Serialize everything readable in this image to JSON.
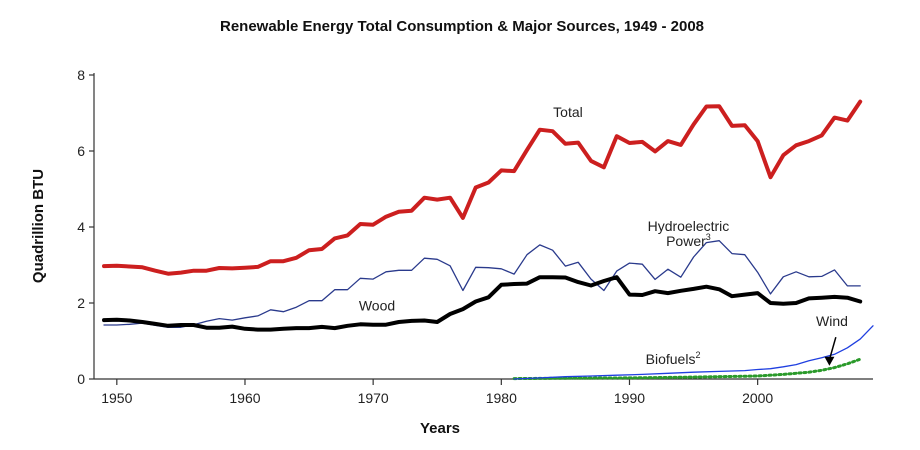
{
  "chart_data": {
    "type": "line",
    "title": "Renewable Energy Total Consumption & Major Sources, 1949 - 2008",
    "xlabel": "Years",
    "ylabel": "Quadrillion BTU",
    "xlim": [
      1949,
      2008
    ],
    "ylim": [
      0,
      8
    ],
    "xticks": [
      1950,
      1960,
      1970,
      1980,
      1990,
      2000
    ],
    "yticks": [
      0,
      2,
      4,
      6,
      8
    ],
    "grid": false,
    "series": [
      {
        "name": "Total",
        "color": "#cc1f1f",
        "style": "solid-thick",
        "points": [
          [
            1949,
            2.97
          ],
          [
            1950,
            2.98
          ],
          [
            1951,
            2.96
          ],
          [
            1952,
            2.94
          ],
          [
            1953,
            2.85
          ],
          [
            1954,
            2.77
          ],
          [
            1955,
            2.8
          ],
          [
            1956,
            2.85
          ],
          [
            1957,
            2.85
          ],
          [
            1958,
            2.92
          ],
          [
            1959,
            2.91
          ],
          [
            1960,
            2.93
          ],
          [
            1961,
            2.95
          ],
          [
            1962,
            3.1
          ],
          [
            1963,
            3.1
          ],
          [
            1964,
            3.19
          ],
          [
            1965,
            3.39
          ],
          [
            1966,
            3.42
          ],
          [
            1967,
            3.7
          ],
          [
            1968,
            3.78
          ],
          [
            1969,
            4.08
          ],
          [
            1970,
            4.06
          ],
          [
            1971,
            4.27
          ],
          [
            1972,
            4.4
          ],
          [
            1973,
            4.43
          ],
          [
            1974,
            4.77
          ],
          [
            1975,
            4.72
          ],
          [
            1976,
            4.77
          ],
          [
            1977,
            4.24
          ],
          [
            1978,
            5.04
          ],
          [
            1979,
            5.17
          ],
          [
            1980,
            5.49
          ],
          [
            1981,
            5.47
          ],
          [
            1982,
            6.03
          ],
          [
            1983,
            6.56
          ],
          [
            1984,
            6.52
          ],
          [
            1985,
            6.19
          ],
          [
            1986,
            6.22
          ],
          [
            1987,
            5.74
          ],
          [
            1988,
            5.57
          ],
          [
            1989,
            6.39
          ],
          [
            1990,
            6.21
          ],
          [
            1991,
            6.24
          ],
          [
            1992,
            5.99
          ],
          [
            1993,
            6.26
          ],
          [
            1994,
            6.16
          ],
          [
            1995,
            6.7
          ],
          [
            1996,
            7.17
          ],
          [
            1997,
            7.18
          ],
          [
            1998,
            6.66
          ],
          [
            1999,
            6.68
          ],
          [
            2000,
            6.26
          ],
          [
            2001,
            5.31
          ],
          [
            2002,
            5.89
          ],
          [
            2003,
            6.15
          ],
          [
            2004,
            6.26
          ],
          [
            2005,
            6.41
          ],
          [
            2006,
            6.88
          ],
          [
            2007,
            6.8
          ],
          [
            2008,
            7.3
          ]
        ]
      },
      {
        "name": "Hydroelectric Power",
        "name_superscript": "3",
        "label_line1": "Hydroelectric",
        "label_line2": "Power",
        "color": "#2a3a8c",
        "style": "solid-thin",
        "points": [
          [
            1949,
            1.42
          ],
          [
            1950,
            1.42
          ],
          [
            1951,
            1.44
          ],
          [
            1952,
            1.47
          ],
          [
            1953,
            1.41
          ],
          [
            1954,
            1.36
          ],
          [
            1955,
            1.36
          ],
          [
            1956,
            1.43
          ],
          [
            1957,
            1.52
          ],
          [
            1958,
            1.59
          ],
          [
            1959,
            1.55
          ],
          [
            1960,
            1.61
          ],
          [
            1961,
            1.66
          ],
          [
            1962,
            1.82
          ],
          [
            1963,
            1.77
          ],
          [
            1964,
            1.89
          ],
          [
            1965,
            2.06
          ],
          [
            1966,
            2.06
          ],
          [
            1967,
            2.35
          ],
          [
            1968,
            2.35
          ],
          [
            1969,
            2.65
          ],
          [
            1970,
            2.63
          ],
          [
            1971,
            2.82
          ],
          [
            1972,
            2.86
          ],
          [
            1973,
            2.86
          ],
          [
            1974,
            3.18
          ],
          [
            1975,
            3.15
          ],
          [
            1976,
            2.98
          ],
          [
            1977,
            2.33
          ],
          [
            1978,
            2.94
          ],
          [
            1979,
            2.93
          ],
          [
            1980,
            2.9
          ],
          [
            1981,
            2.76
          ],
          [
            1982,
            3.27
          ],
          [
            1983,
            3.53
          ],
          [
            1984,
            3.39
          ],
          [
            1985,
            2.97
          ],
          [
            1986,
            3.07
          ],
          [
            1987,
            2.63
          ],
          [
            1988,
            2.33
          ],
          [
            1989,
            2.84
          ],
          [
            1990,
            3.05
          ],
          [
            1991,
            3.02
          ],
          [
            1992,
            2.62
          ],
          [
            1993,
            2.89
          ],
          [
            1994,
            2.68
          ],
          [
            1995,
            3.21
          ],
          [
            1996,
            3.59
          ],
          [
            1997,
            3.64
          ],
          [
            1998,
            3.3
          ],
          [
            1999,
            3.27
          ],
          [
            2000,
            2.81
          ],
          [
            2001,
            2.24
          ],
          [
            2002,
            2.69
          ],
          [
            2003,
            2.82
          ],
          [
            2004,
            2.69
          ],
          [
            2005,
            2.7
          ],
          [
            2006,
            2.87
          ],
          [
            2007,
            2.45
          ],
          [
            2008,
            2.45
          ]
        ]
      },
      {
        "name": "Wood",
        "color": "#000000",
        "style": "solid-thick",
        "points": [
          [
            1949,
            1.55
          ],
          [
            1950,
            1.56
          ],
          [
            1951,
            1.54
          ],
          [
            1952,
            1.5
          ],
          [
            1953,
            1.45
          ],
          [
            1954,
            1.4
          ],
          [
            1955,
            1.42
          ],
          [
            1956,
            1.42
          ],
          [
            1957,
            1.35
          ],
          [
            1958,
            1.35
          ],
          [
            1959,
            1.38
          ],
          [
            1960,
            1.32
          ],
          [
            1961,
            1.3
          ],
          [
            1962,
            1.3
          ],
          [
            1963,
            1.32
          ],
          [
            1964,
            1.34
          ],
          [
            1965,
            1.34
          ],
          [
            1966,
            1.37
          ],
          [
            1967,
            1.34
          ],
          [
            1968,
            1.4
          ],
          [
            1969,
            1.44
          ],
          [
            1970,
            1.43
          ],
          [
            1971,
            1.43
          ],
          [
            1972,
            1.5
          ],
          [
            1973,
            1.53
          ],
          [
            1974,
            1.54
          ],
          [
            1975,
            1.5
          ],
          [
            1976,
            1.71
          ],
          [
            1977,
            1.84
          ],
          [
            1978,
            2.04
          ],
          [
            1979,
            2.15
          ],
          [
            1980,
            2.48
          ],
          [
            1981,
            2.5
          ],
          [
            1982,
            2.51
          ],
          [
            1983,
            2.68
          ],
          [
            1984,
            2.68
          ],
          [
            1985,
            2.67
          ],
          [
            1986,
            2.55
          ],
          [
            1987,
            2.46
          ],
          [
            1988,
            2.58
          ],
          [
            1989,
            2.68
          ],
          [
            1990,
            2.22
          ],
          [
            1991,
            2.21
          ],
          [
            1992,
            2.31
          ],
          [
            1993,
            2.26
          ],
          [
            1994,
            2.32
          ],
          [
            1995,
            2.37
          ],
          [
            1996,
            2.43
          ],
          [
            1997,
            2.36
          ],
          [
            1998,
            2.18
          ],
          [
            1999,
            2.22
          ],
          [
            2000,
            2.26
          ],
          [
            2001,
            2.0
          ],
          [
            2002,
            1.98
          ],
          [
            2003,
            2.0
          ],
          [
            2004,
            2.12
          ],
          [
            2005,
            2.14
          ],
          [
            2006,
            2.16
          ],
          [
            2007,
            2.14
          ],
          [
            2008,
            2.04
          ]
        ]
      },
      {
        "name": "Wind",
        "color": "#1f3fe0",
        "style": "solid-thin",
        "points": [
          [
            1981,
            0.0
          ],
          [
            1983,
            0.03
          ],
          [
            1985,
            0.06
          ],
          [
            1987,
            0.08
          ],
          [
            1989,
            0.1
          ],
          [
            1991,
            0.12
          ],
          [
            1993,
            0.15
          ],
          [
            1995,
            0.18
          ],
          [
            1997,
            0.2
          ],
          [
            1999,
            0.22
          ],
          [
            2000,
            0.25
          ],
          [
            2001,
            0.27
          ],
          [
            2002,
            0.32
          ],
          [
            2003,
            0.38
          ],
          [
            2004,
            0.48
          ],
          [
            2005,
            0.56
          ],
          [
            2006,
            0.65
          ],
          [
            2007,
            0.82
          ],
          [
            2008,
            1.05
          ],
          [
            2009,
            1.4
          ]
        ]
      },
      {
        "name": "Biofuels",
        "name_superscript": "2",
        "color": "#2a9a2a",
        "style": "dotted",
        "points": [
          [
            1981,
            0.01
          ],
          [
            1985,
            0.02
          ],
          [
            1990,
            0.03
          ],
          [
            1995,
            0.05
          ],
          [
            2000,
            0.08
          ],
          [
            2002,
            0.12
          ],
          [
            2004,
            0.18
          ],
          [
            2005,
            0.23
          ],
          [
            2006,
            0.3
          ],
          [
            2007,
            0.4
          ],
          [
            2008,
            0.52
          ]
        ]
      }
    ],
    "annotations": [
      {
        "text": "Total",
        "x": 1985.2,
        "y": 6.9
      },
      {
        "text": "Hydroelectric",
        "x": 1994.6,
        "y": 3.9
      },
      {
        "text": "Power",
        "x": 1994.6,
        "y": 3.5
      },
      {
        "text": "Wood",
        "x": 1970.3,
        "y": 1.8
      },
      {
        "text": "Wind",
        "x": 2005.8,
        "y": 1.4
      },
      {
        "text": "Biofuels",
        "x": 1993.4,
        "y": 0.4
      }
    ],
    "arrow": {
      "from": [
        2006.1,
        1.1
      ],
      "to": [
        2005.6,
        0.35
      ]
    }
  }
}
